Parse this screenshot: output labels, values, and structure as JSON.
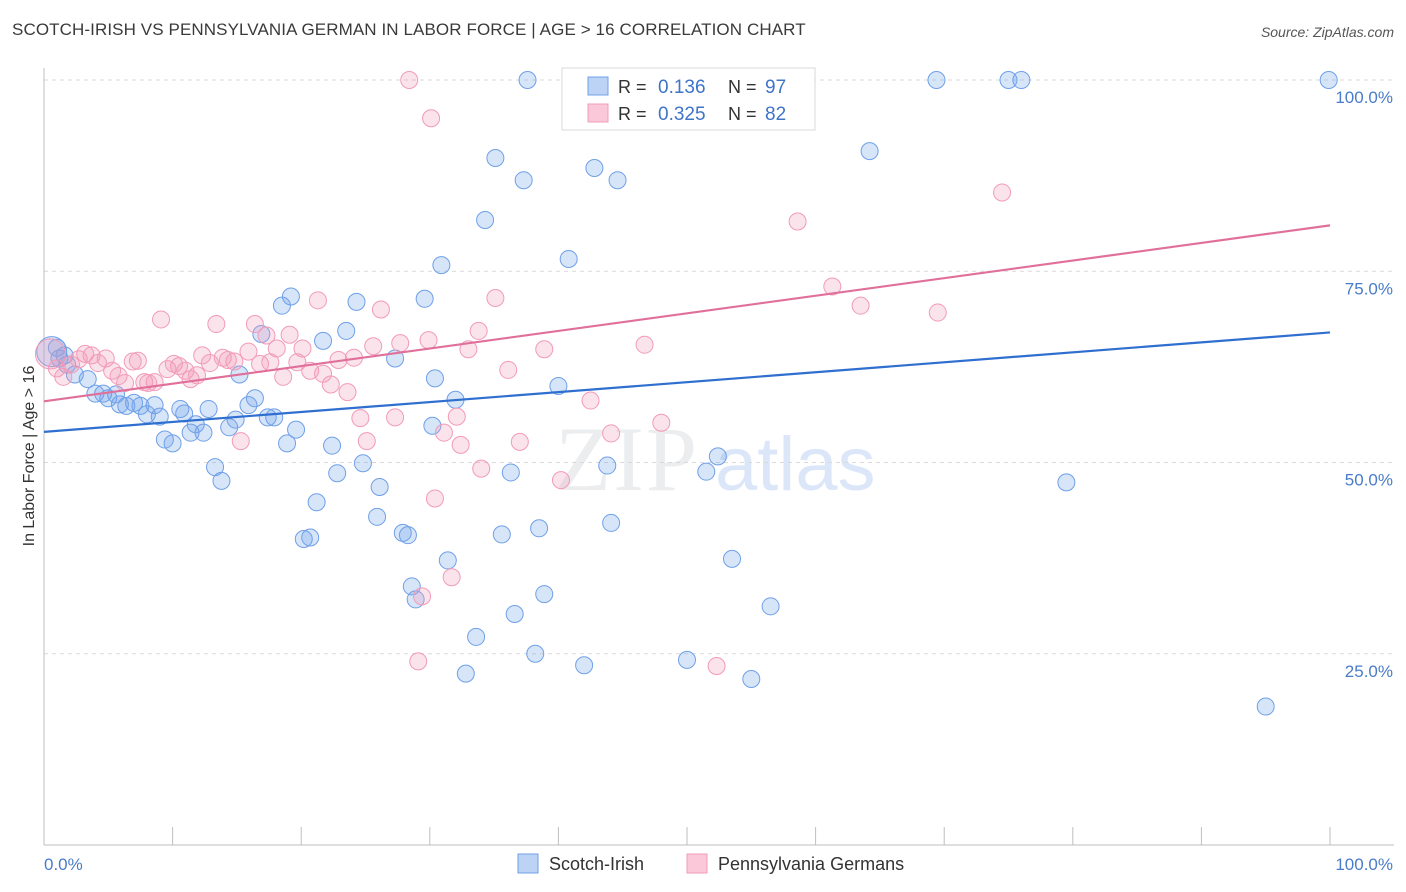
{
  "header": {
    "title": "SCOTCH-IRISH VS PENNSYLVANIA GERMAN IN LABOR FORCE | AGE > 16 CORRELATION CHART",
    "source": "Source: ZipAtlas.com"
  },
  "watermark": {
    "zip": "ZIP",
    "atlas": "atlas"
  },
  "legend": {
    "r_label": "R =",
    "n_label": "N =",
    "rows": [
      {
        "r": "0.136",
        "n": "97"
      },
      {
        "r": "0.325",
        "n": "82"
      }
    ]
  },
  "bottom_legend": [
    "Scotch-Irish",
    "Pennsylvania Germans"
  ],
  "chart_data": {
    "type": "scatter",
    "title": "SCOTCH-IRISH VS PENNSYLVANIA GERMAN IN LABOR FORCE | AGE > 16 CORRELATION CHART",
    "xlabel": "",
    "ylabel": "In Labor Force | Age > 16",
    "xlim": [
      0,
      100
    ],
    "ylim": [
      0,
      100
    ],
    "x_tick_labels": [
      "0.0%",
      "100.0%"
    ],
    "y_tick_values": [
      25,
      50,
      75,
      100
    ],
    "y_tick_labels": [
      "25.0%",
      "50.0%",
      "75.0%",
      "100.0%"
    ],
    "grid": "horizontal dashed",
    "colors": {
      "scotch_irish": "#6fa0e8",
      "pennsylvania_germans": "#f29bb8",
      "blue_line": "#2f6fd0",
      "pink_line": "#e0709a"
    },
    "series": [
      {
        "name": "Scotch-Irish",
        "trend": {
          "x": [
            0,
            100
          ],
          "y": [
            54.0,
            67.0
          ]
        },
        "points": [
          [
            0.6,
            64.5
          ],
          [
            1.2,
            63.6
          ],
          [
            1.8,
            62.8
          ],
          [
            2.4,
            61.5
          ],
          [
            3.4,
            60.9
          ],
          [
            4.0,
            59.0
          ],
          [
            4.6,
            59.0
          ],
          [
            5.0,
            58.4
          ],
          [
            5.6,
            58.9
          ],
          [
            5.9,
            57.6
          ],
          [
            6.4,
            57.4
          ],
          [
            7.0,
            57.8
          ],
          [
            7.5,
            57.4
          ],
          [
            8.0,
            56.3
          ],
          [
            8.6,
            57.5
          ],
          [
            9.0,
            56.0
          ],
          [
            9.4,
            53.0
          ],
          [
            10.0,
            52.5
          ],
          [
            10.6,
            57.0
          ],
          [
            10.9,
            56.4
          ],
          [
            11.4,
            53.9
          ],
          [
            11.8,
            55.0
          ],
          [
            12.4,
            53.9
          ],
          [
            12.8,
            57.0
          ],
          [
            13.3,
            49.4
          ],
          [
            13.8,
            47.6
          ],
          [
            14.4,
            54.6
          ],
          [
            14.9,
            55.6
          ],
          [
            15.2,
            61.5
          ],
          [
            15.9,
            57.5
          ],
          [
            16.4,
            58.4
          ],
          [
            16.9,
            66.8
          ],
          [
            17.4,
            55.9
          ],
          [
            17.9,
            55.9
          ],
          [
            18.5,
            70.5
          ],
          [
            18.9,
            52.5
          ],
          [
            19.2,
            71.7
          ],
          [
            19.6,
            54.3
          ],
          [
            20.2,
            40.0
          ],
          [
            20.7,
            40.2
          ],
          [
            21.2,
            44.8
          ],
          [
            21.7,
            65.9
          ],
          [
            22.4,
            52.2
          ],
          [
            22.8,
            48.6
          ],
          [
            23.5,
            67.2
          ],
          [
            24.3,
            71.0
          ],
          [
            24.8,
            49.9
          ],
          [
            25.9,
            42.9
          ],
          [
            26.1,
            46.8
          ],
          [
            27.3,
            63.6
          ],
          [
            27.9,
            40.8
          ],
          [
            28.3,
            40.5
          ],
          [
            28.6,
            33.8
          ],
          [
            28.9,
            32.1
          ],
          [
            29.6,
            71.4
          ],
          [
            30.2,
            54.8
          ],
          [
            30.4,
            61.0
          ],
          [
            30.9,
            75.8
          ],
          [
            31.4,
            37.2
          ],
          [
            32.0,
            58.2
          ],
          [
            32.8,
            22.4
          ],
          [
            33.6,
            27.2
          ],
          [
            34.3,
            81.7
          ],
          [
            35.1,
            89.8
          ],
          [
            35.6,
            40.6
          ],
          [
            36.3,
            48.7
          ],
          [
            36.6,
            30.2
          ],
          [
            37.3,
            86.9
          ],
          [
            37.6,
            100.0
          ],
          [
            38.2,
            25.0
          ],
          [
            38.5,
            41.4
          ],
          [
            38.9,
            32.8
          ],
          [
            40.0,
            60.0
          ],
          [
            40.8,
            76.6
          ],
          [
            42.0,
            23.5
          ],
          [
            42.1,
            100.0
          ],
          [
            42.8,
            88.5
          ],
          [
            43.8,
            49.6
          ],
          [
            44.1,
            42.1
          ],
          [
            44.6,
            86.9
          ],
          [
            45.8,
            100.0
          ],
          [
            49.0,
            100.0
          ],
          [
            50.0,
            24.2
          ],
          [
            51.5,
            48.8
          ],
          [
            52.4,
            50.8
          ],
          [
            53.5,
            37.4
          ],
          [
            55.0,
            21.7
          ],
          [
            56.5,
            31.2
          ],
          [
            64.2,
            90.7
          ],
          [
            69.4,
            100.0
          ],
          [
            75.0,
            100.0
          ],
          [
            76.0,
            100.0
          ],
          [
            79.5,
            47.4
          ],
          [
            95.0,
            18.1
          ],
          [
            99.9,
            100.0
          ],
          [
            1.0,
            65.0
          ],
          [
            1.6,
            64.0
          ]
        ]
      },
      {
        "name": "Pennsylvania Germans",
        "trend": {
          "x": [
            0,
            100
          ],
          "y": [
            58.0,
            81.0
          ]
        },
        "points": [
          [
            0.5,
            64.2
          ],
          [
            1.0,
            62.3
          ],
          [
            1.5,
            61.2
          ],
          [
            2.1,
            62.8
          ],
          [
            2.7,
            63.5
          ],
          [
            3.2,
            64.2
          ],
          [
            3.7,
            64.0
          ],
          [
            4.2,
            63.0
          ],
          [
            4.8,
            63.6
          ],
          [
            5.3,
            62.0
          ],
          [
            5.8,
            61.3
          ],
          [
            6.3,
            60.4
          ],
          [
            6.9,
            63.2
          ],
          [
            7.3,
            63.3
          ],
          [
            7.8,
            60.5
          ],
          [
            8.1,
            60.4
          ],
          [
            8.6,
            60.5
          ],
          [
            9.1,
            68.7
          ],
          [
            9.6,
            62.2
          ],
          [
            10.1,
            62.9
          ],
          [
            10.5,
            62.6
          ],
          [
            11.0,
            62.0
          ],
          [
            11.4,
            60.9
          ],
          [
            11.9,
            61.4
          ],
          [
            12.3,
            64.0
          ],
          [
            12.9,
            63.0
          ],
          [
            13.4,
            68.1
          ],
          [
            13.9,
            63.7
          ],
          [
            14.3,
            63.4
          ],
          [
            14.8,
            63.2
          ],
          [
            15.3,
            52.8
          ],
          [
            15.9,
            64.5
          ],
          [
            16.4,
            68.1
          ],
          [
            16.8,
            62.9
          ],
          [
            17.3,
            66.6
          ],
          [
            17.6,
            63.1
          ],
          [
            18.1,
            64.9
          ],
          [
            18.6,
            61.2
          ],
          [
            19.1,
            66.7
          ],
          [
            19.7,
            63.1
          ],
          [
            20.1,
            64.9
          ],
          [
            20.7,
            62.0
          ],
          [
            21.3,
            71.2
          ],
          [
            21.7,
            61.6
          ],
          [
            22.3,
            60.2
          ],
          [
            22.9,
            63.4
          ],
          [
            23.6,
            59.2
          ],
          [
            24.1,
            63.7
          ],
          [
            24.6,
            55.8
          ],
          [
            25.1,
            52.8
          ],
          [
            25.6,
            65.2
          ],
          [
            26.2,
            70.0
          ],
          [
            27.3,
            55.9
          ],
          [
            27.7,
            65.6
          ],
          [
            28.4,
            100.0
          ],
          [
            29.1,
            24.0
          ],
          [
            29.4,
            32.5
          ],
          [
            29.9,
            66.0
          ],
          [
            30.1,
            95.0
          ],
          [
            30.4,
            45.3
          ],
          [
            31.1,
            53.9
          ],
          [
            31.7,
            35.0
          ],
          [
            32.1,
            56.0
          ],
          [
            32.4,
            52.3
          ],
          [
            33.0,
            64.8
          ],
          [
            33.8,
            67.2
          ],
          [
            34.0,
            49.2
          ],
          [
            35.1,
            71.5
          ],
          [
            36.1,
            62.1
          ],
          [
            37.0,
            52.7
          ],
          [
            38.9,
            64.8
          ],
          [
            40.2,
            47.7
          ],
          [
            42.5,
            58.1
          ],
          [
            44.1,
            53.8
          ],
          [
            46.7,
            65.4
          ],
          [
            48.0,
            55.2
          ],
          [
            52.3,
            23.4
          ],
          [
            58.6,
            81.5
          ],
          [
            61.3,
            73.0
          ],
          [
            63.5,
            70.5
          ],
          [
            69.5,
            69.6
          ],
          [
            74.5,
            85.3
          ]
        ]
      }
    ]
  }
}
